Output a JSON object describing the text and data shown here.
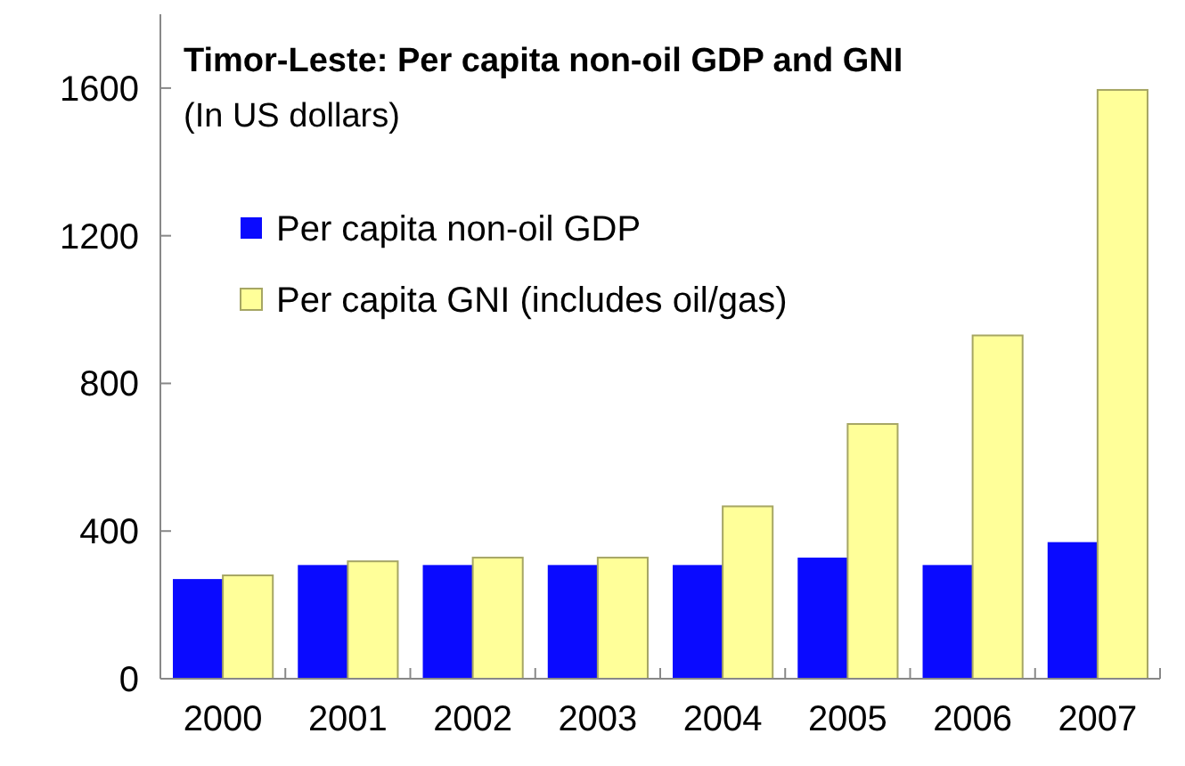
{
  "chart_data": {
    "type": "bar",
    "title": "Timor-Leste: Per capita non-oil GDP and GNI",
    "subtitle": "(In US dollars)",
    "categories": [
      "2000",
      "2001",
      "2002",
      "2003",
      "2004",
      "2005",
      "2006",
      "2007"
    ],
    "series": [
      {
        "name": "Per capita non-oil GDP",
        "color": "#0a0aff",
        "values": [
          270,
          308,
          308,
          308,
          308,
          328,
          308,
          370
        ]
      },
      {
        "name": "Per capita GNI (includes oil/gas)",
        "color": "#ffff99",
        "values": [
          280,
          318,
          328,
          328,
          467,
          690,
          930,
          1595
        ]
      }
    ],
    "ylim": [
      0,
      1800
    ],
    "yticks": [
      0,
      400,
      800,
      1200,
      1600
    ],
    "grid": false,
    "legend": "top left"
  }
}
